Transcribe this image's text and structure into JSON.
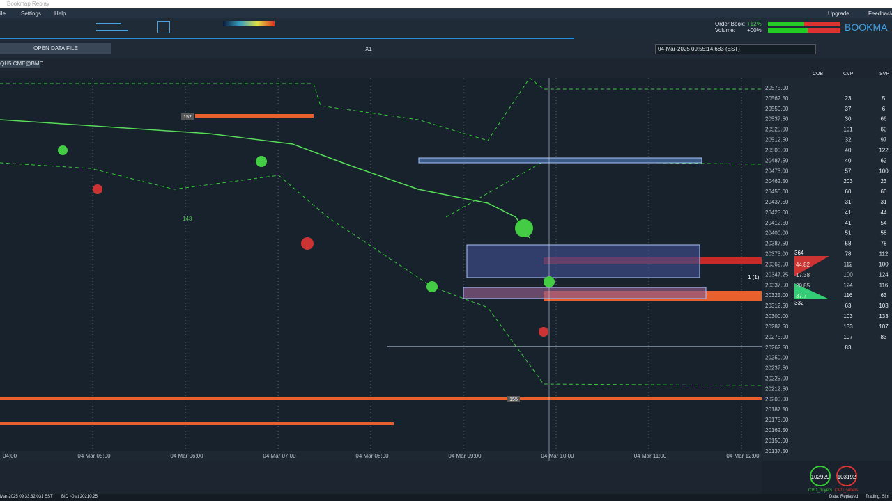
{
  "window_title": "Bookmap Replay",
  "menu": [
    "ile",
    "Settings",
    "Help"
  ],
  "menu_right": [
    "Upgrade",
    "Feedback"
  ],
  "order_book": {
    "label": "Order Book:",
    "value": "+12%"
  },
  "volume": {
    "label": "Volume:",
    "value": "+00%"
  },
  "brand": "BOOKMA",
  "toolbar2": {
    "open_button": "OPEN DATA FILE",
    "speed": "X1",
    "datetime": "04-Mar-2025 09:55:14.683 (EST)"
  },
  "tab": "QH5.CME@BMD",
  "chart": {
    "price_labels": [
      "20575.00",
      "20562.50",
      "20550.00",
      "20537.50",
      "20525.00",
      "20512.50",
      "20500.00",
      "20487.50",
      "20475.00",
      "20462.50",
      "20450.00",
      "20437.50",
      "20425.00",
      "20412.50",
      "20400.00",
      "20387.50",
      "20375.00",
      "20362.50",
      "20347.25",
      "20337.50",
      "20325.00",
      "20312.50",
      "20300.00",
      "20287.50",
      "20275.00",
      "20262.50",
      "20250.00",
      "20237.50",
      "20225.00",
      "20212.50",
      "20200.00",
      "20187.50",
      "20175.00",
      "20162.50",
      "20150.00",
      "20137.50"
    ],
    "time_labels": [
      "04:00",
      "04 Mar 05:00",
      "04 Mar 06:00",
      "04 Mar 07:00",
      "04 Mar 08:00",
      "04 Mar 09:00",
      "04 Mar 10:00",
      "04 Mar 11:00",
      "04 Mar 12:00"
    ],
    "annotations": {
      "a152": "152",
      "a143": "143",
      "a155": "155",
      "a364": "364",
      "a332": "332",
      "v1": "44.82",
      "v2": "17.38",
      "v3": "20.85",
      "v4": "37.7",
      "pos": "1 (1)"
    }
  },
  "columns": {
    "headers": [
      "COB",
      "CVP",
      "SVP"
    ],
    "cvp": [
      "23",
      "37",
      "30",
      "101",
      "32",
      "40",
      "40",
      "57",
      "203",
      "60",
      "31",
      "41",
      "41",
      "51",
      "58",
      "78",
      "112",
      "100",
      "124",
      "116",
      "63",
      "103",
      "133",
      "107",
      "83"
    ],
    "svp": [
      "5",
      "6",
      "66",
      "60",
      "97",
      "122",
      "62",
      "100",
      "23",
      "60",
      "31",
      "44",
      "54",
      "58",
      "78",
      "112",
      "100",
      "124",
      "116",
      "63",
      "103",
      "133",
      "107",
      "83"
    ]
  },
  "bottom": {
    "gauge1": "102929",
    "gauge2": "103192",
    "legend1": "CVD_buyers",
    "legend2": "CVD_sellers"
  },
  "status": {
    "left": "Mar-2025 09:33:32.031 EST",
    "bid": "BID ~0 at 20210.25",
    "data": "Data: Replayed",
    "trading": "Trading: Sim"
  }
}
